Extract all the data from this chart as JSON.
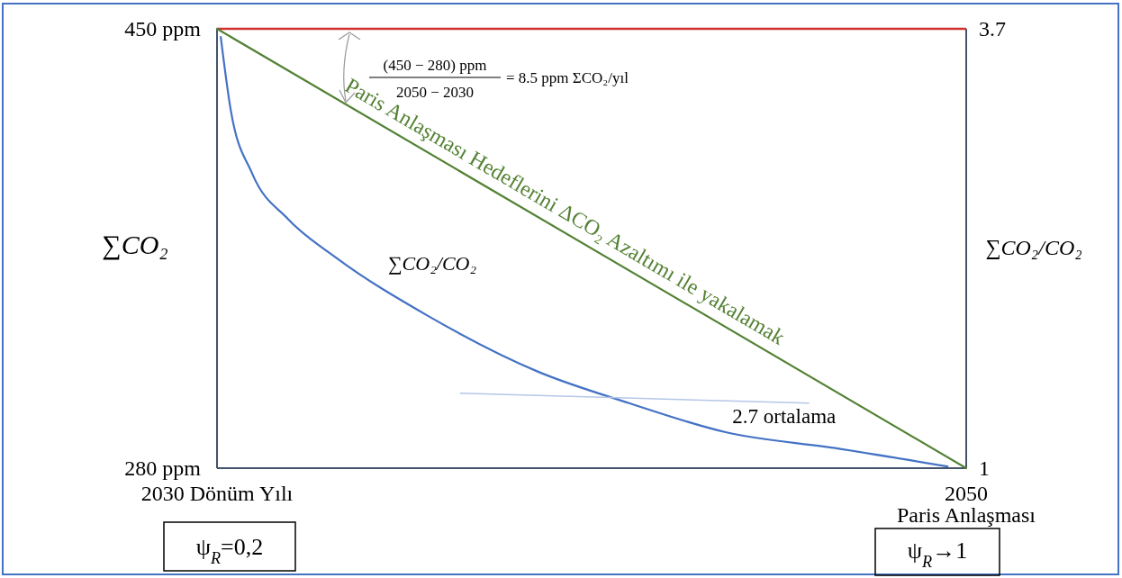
{
  "chart_data": {
    "type": "line",
    "ylabel": "∑CO₂",
    "y2label": "∑CO₂/CO₂",
    "xlim": [
      2030,
      2050
    ],
    "xticks": [
      {
        "value": 2030,
        "label": "2030 Dönüm Yılı"
      },
      2050
    ],
    "ylim": [
      280,
      450
    ],
    "yticks": [
      {
        "value": 280,
        "label": "280 ppm"
      },
      {
        "value": 450,
        "label": "450 ppm"
      }
    ],
    "y2lim": [
      1,
      3.7
    ],
    "y2ticks": [
      1,
      3.7
    ],
    "ref_lines": [
      {
        "axis": "y",
        "value": 450,
        "color": "#d0312d"
      }
    ],
    "series": [
      {
        "name": "Paris Anlaşması Hedeflerini ΔCO₂ Azaltımı ile yakalamak",
        "color": "#548235",
        "x": [
          2030,
          2050
        ],
        "values": [
          450,
          280
        ]
      },
      {
        "name": "∑CO₂/CO₂",
        "color": "#4472c4",
        "axis": "y2",
        "x": [
          2030.1,
          2030.36,
          2030.94,
          2031.9,
          2033.2,
          2035.6,
          2038.6,
          2041.0,
          2043.6,
          2046.6,
          2049.5
        ],
        "values": [
          3.65,
          3.21,
          2.81,
          2.53,
          2.29,
          1.94,
          1.59,
          1.4,
          1.22,
          1.12,
          1.01
        ]
      },
      {
        "name": "2.7 ortalama",
        "color": "#b4c7e7",
        "axis": "y2",
        "x": [
          2036.5,
          2045.8
        ],
        "values": [
          1.46,
          1.4
        ]
      }
    ],
    "annotations": [
      "(450 − 280) ppm",
      "2050 − 2030",
      "= 8.5 ppm ΣCO₂/yıl",
      "Paris Anlaşması",
      "ψ$_{R}$=0,2",
      "ψ$_{R}$→1"
    ]
  }
}
